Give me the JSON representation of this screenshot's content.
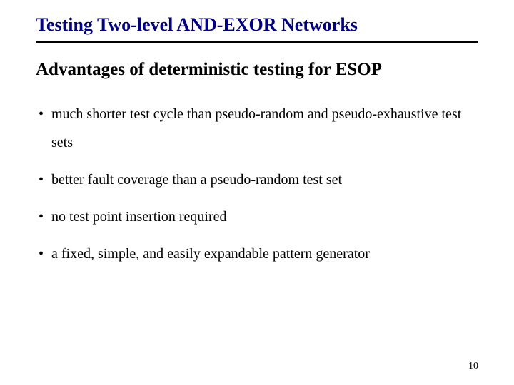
{
  "title": "Testing Two-level AND-EXOR Networks",
  "subtitle": "Advantages of deterministic testing for ESOP",
  "bullets": [
    "much shorter test cycle than pseudo-random and pseudo-exhaustive test sets",
    "better fault coverage than a pseudo-random test set",
    "no test point insertion required",
    "a fixed, simple, and easily expandable pattern generator"
  ],
  "page_number": "10",
  "colors": {
    "title_color": "#000080",
    "text_color": "#000000",
    "background": "#ffffff",
    "rule_color": "#000000"
  },
  "typography": {
    "title_fontsize": 26,
    "title_weight": "bold",
    "subtitle_fontsize": 25,
    "bullet_fontsize": 20,
    "page_number_fontsize": 14,
    "font_family": "Times New Roman"
  }
}
